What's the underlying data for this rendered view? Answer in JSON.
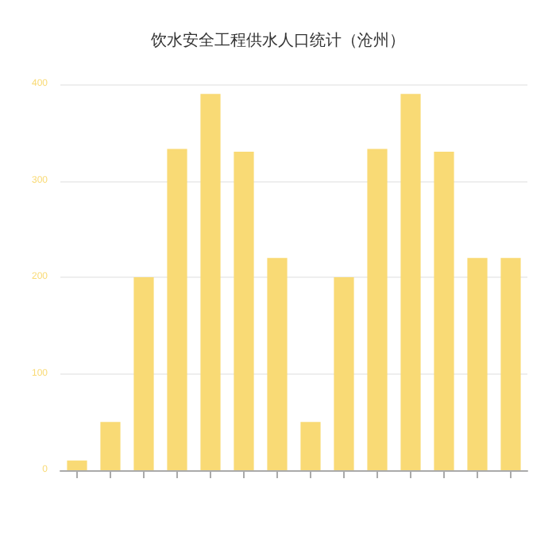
{
  "chart_data": {
    "type": "bar",
    "title": "饮水安全工程供水人口统计（沧州）",
    "categories": [
      null,
      null,
      null,
      null,
      null,
      null,
      null,
      null,
      null,
      null,
      null,
      null,
      null,
      null
    ],
    "values": [
      10,
      50,
      200,
      333,
      390,
      330,
      220,
      50,
      200,
      333,
      390,
      330,
      220,
      220
    ],
    "color": "#f9da75",
    "ylim": [
      0,
      400
    ],
    "yticks": [
      0,
      100,
      200,
      300,
      400
    ],
    "grid": "y"
  }
}
